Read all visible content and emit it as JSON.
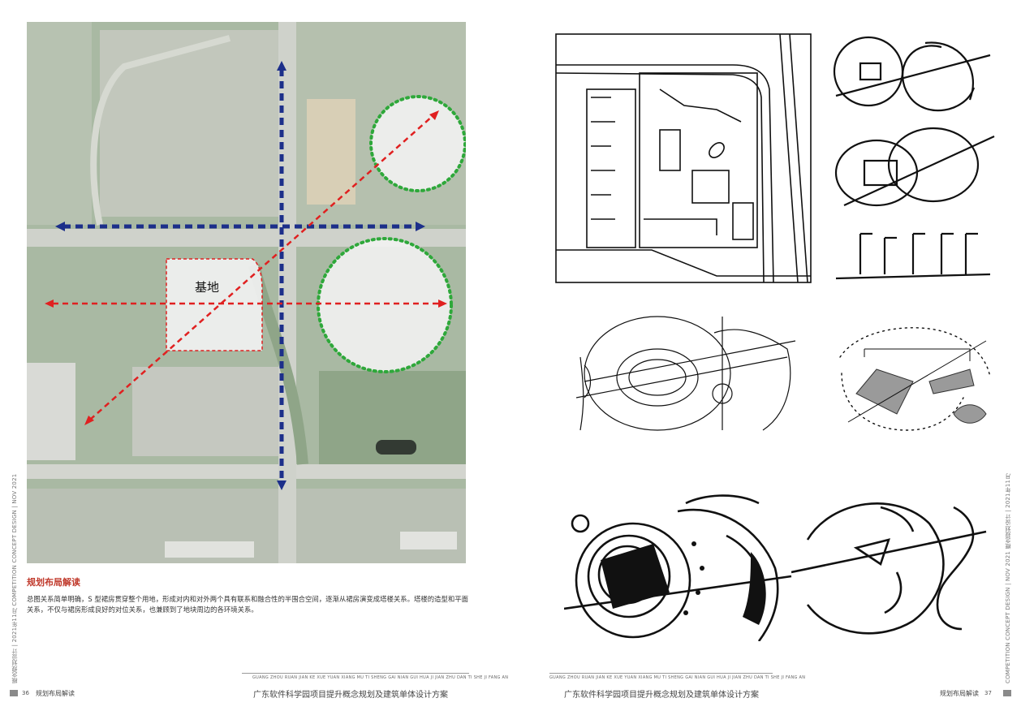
{
  "map": {
    "site_label": "基地"
  },
  "caption": {
    "title": "规划布局解读",
    "body": "总图关系简单明确，S 型裙房贯穿整个用地，形成对内和对外两个具有联系和融合性的半围合空间，逐渐从裙房演变成塔楼关系。塔楼的造型和平面关系，不仅与裙房形成良好的对位关系，也兼顾到了地块周边的各环境关系。"
  },
  "left_page": {
    "vertical_text": "概念规划设计 | 2021年11月 COMPETITION CONCEPT DESIGN | NOV 2021",
    "page_number": "36",
    "section_label": "规划布局解读",
    "footer_pinyin": "GUANG ZHOU RUAN JIAN KE XUE YUAN XIANG MU TI SHENG GAI NIAN GUI HUA JI JIAN ZHU DAN TI SHE JI FANG AN",
    "footer_title": "广东软件科学园项目提升概念规划及建筑单体设计方案"
  },
  "right_page": {
    "vertical_text": "COMPETITION CONCEPT DESIGN | NOV 2021 概念规划设计 | 2021年11月",
    "page_number": "37",
    "section_label": "规划布局解读",
    "footer_pinyin": "GUANG ZHOU RUAN JIAN KE XUE YUAN XIANG MU TI SHENG GAI NIAN GUI HUA JI JIAN ZHU DAN TI SHE JI FANG AN",
    "footer_title": "广东软件科学园项目提升概念规划及建筑单体设计方案"
  },
  "colors": {
    "axis_blue": "#1c2f8a",
    "axis_red": "#e02020",
    "circle_green": "#2ea83a",
    "caption_red": "#c0392b"
  }
}
